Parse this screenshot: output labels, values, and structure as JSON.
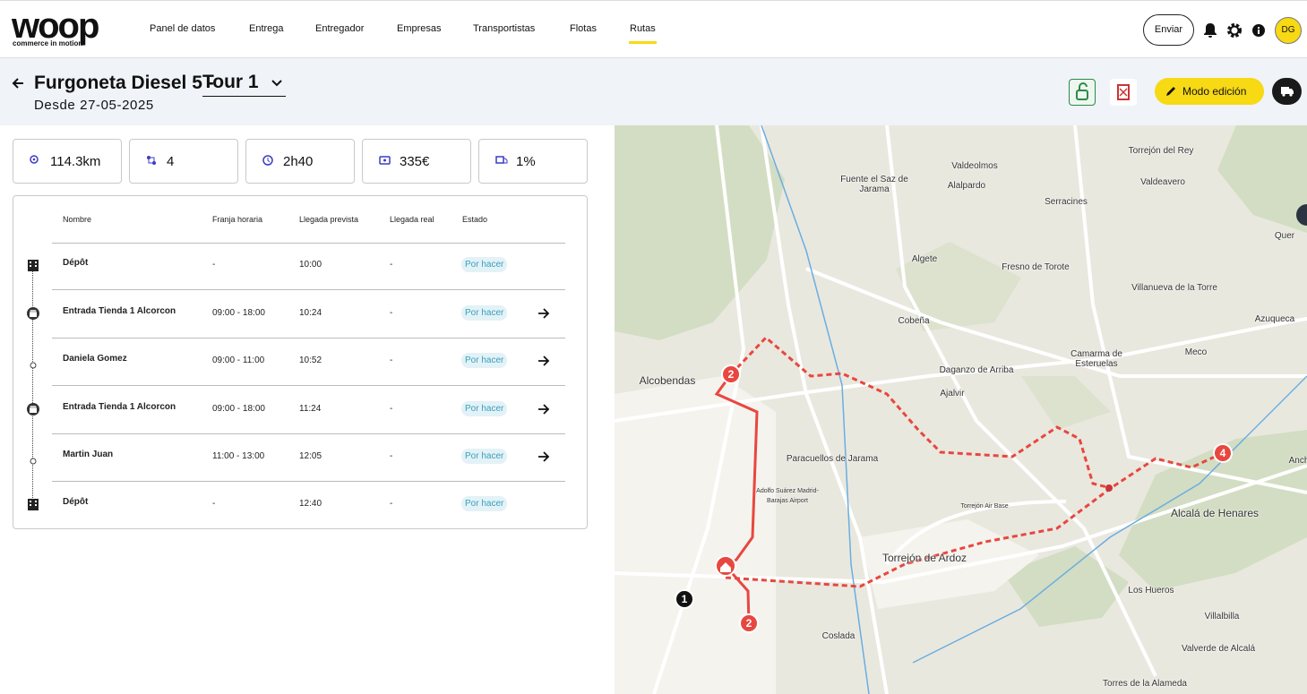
{
  "nav": {
    "logo": "woop",
    "tagline": "commerce in motion",
    "items": [
      "Panel de datos",
      "Entrega",
      "Entregador",
      "Empresas",
      "Transportistas",
      "Flotas",
      "Rutas"
    ],
    "send_button": "Enviar",
    "avatar": "DG"
  },
  "header": {
    "title": "Furgoneta Diesel 5 -",
    "tour": "Tour 1",
    "since": "Desde 27-05-2025",
    "edit_button": "Modo edición"
  },
  "stats": [
    "114.3km",
    "4",
    "2h40",
    "335€",
    "1%"
  ],
  "table": {
    "columns": [
      "Nombre",
      "Franja horaria",
      "Llegada prevista",
      "Llegada real",
      "Estado"
    ],
    "rows": [
      [
        "Dépôt",
        "-",
        "10:00",
        "-",
        "Por hacer"
      ],
      [
        "Entrada Tienda 1 Alcorcon",
        "09:00 - 18:00",
        "10:24",
        "-",
        "Por hacer"
      ],
      [
        "Daniela Gomez",
        "09:00 - 11:00",
        "10:52",
        "-",
        "Por hacer"
      ],
      [
        "Entrada Tienda 1 Alcorcon",
        "09:00 - 18:00",
        "11:24",
        "-",
        "Por hacer"
      ],
      [
        "Martin Juan",
        "11:00 - 13:00",
        "12:05",
        "-",
        "Por hacer"
      ],
      [
        "Dépôt",
        "-",
        "12:40",
        "-",
        "Por hacer"
      ]
    ]
  },
  "map": {
    "places": [
      "Fuente el Saz de Jarama",
      "Valdeolmos",
      "Alalpardo",
      "Torrejón del Rey",
      "Valdeavero",
      "Serracines",
      "Quer",
      "Algete",
      "Fresno de Torote",
      "Villanueva de la Torre",
      "Cobeña",
      "Azuqueca",
      "Alcobendas",
      "Daganzo de Arriba",
      "Camarma de Esteruelas",
      "Meco",
      "Ajalvir",
      "Paracuellos de Jarama",
      "Adolfo Suárez Madrid-Barajas Airport",
      "Torrejón Air Base",
      "Alcalá de Henares",
      "Torrejón de Ardoz",
      "Los Hueros",
      "Coslada",
      "Villalbilla",
      "Valverde de Alcalá",
      "Torres de la Alameda",
      "Anch"
    ],
    "markers": [
      "2",
      "2",
      "4",
      "1"
    ]
  }
}
